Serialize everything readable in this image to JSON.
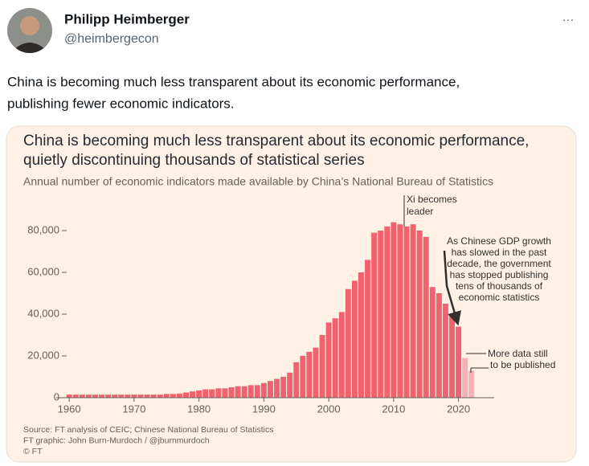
{
  "tweet": {
    "name": "Philipp Heimberger",
    "handle": "@heimbergecon",
    "menu": "···",
    "text": [
      "China is becoming much less transparent about its economic performance,",
      "publishing fewer economic indicators."
    ]
  },
  "chart_data": {
    "type": "bar",
    "title": [
      "China is becoming much less transparent about its economic performance,",
      "quietly discontinuing thousands of statistical series"
    ],
    "subtitle": "Annual number of economic indicators made available by China’s National Bureau of Statistics",
    "x": [
      1960,
      1961,
      1962,
      1963,
      1964,
      1965,
      1966,
      1967,
      1968,
      1969,
      1970,
      1971,
      1972,
      1973,
      1974,
      1975,
      1976,
      1977,
      1978,
      1979,
      1980,
      1981,
      1982,
      1983,
      1984,
      1985,
      1986,
      1987,
      1988,
      1989,
      1990,
      1991,
      1992,
      1993,
      1994,
      1995,
      1996,
      1997,
      1998,
      1999,
      2000,
      2001,
      2002,
      2003,
      2004,
      2005,
      2006,
      2007,
      2008,
      2009,
      2010,
      2011,
      2012,
      2013,
      2014,
      2015,
      2016,
      2017,
      2018,
      2019,
      2020,
      2021,
      2022
    ],
    "values": [
      1500,
      1500,
      1500,
      1500,
      1500,
      1500,
      1500,
      1500,
      1500,
      1500,
      1500,
      1500,
      1500,
      1500,
      1500,
      1800,
      1800,
      2000,
      2500,
      3000,
      3500,
      4000,
      4000,
      4500,
      4500,
      5000,
      5500,
      5500,
      6000,
      6000,
      7000,
      8000,
      9000,
      10000,
      12000,
      17000,
      20000,
      22000,
      24000,
      30000,
      36000,
      38000,
      41000,
      52000,
      56000,
      60000,
      66000,
      79000,
      80000,
      82000,
      84000,
      83000,
      82000,
      83000,
      80000,
      77000,
      53000,
      50000,
      45000,
      40000,
      34000,
      19000,
      13000
    ],
    "colors": [
      "#f0626e",
      "#f0626e",
      "#f0626e",
      "#f0626e",
      "#f0626e",
      "#f0626e",
      "#f0626e",
      "#f0626e",
      "#f0626e",
      "#f0626e",
      "#f0626e",
      "#f0626e",
      "#f0626e",
      "#f0626e",
      "#f0626e",
      "#f0626e",
      "#f0626e",
      "#f0626e",
      "#f0626e",
      "#f0626e",
      "#f0626e",
      "#f0626e",
      "#f0626e",
      "#f0626e",
      "#f0626e",
      "#f0626e",
      "#f0626e",
      "#f0626e",
      "#f0626e",
      "#f0626e",
      "#f0626e",
      "#f0626e",
      "#f0626e",
      "#f0626e",
      "#f0626e",
      "#f0626e",
      "#f0626e",
      "#f0626e",
      "#f0626e",
      "#f0626e",
      "#f0626e",
      "#f0626e",
      "#f0626e",
      "#f0626e",
      "#f0626e",
      "#f0626e",
      "#f0626e",
      "#f0626e",
      "#f0626e",
      "#f0626e",
      "#f0626e",
      "#f0626e",
      "#f0626e",
      "#f0626e",
      "#f0626e",
      "#f0626e",
      "#f0626e",
      "#f0626e",
      "#f0626e",
      "#f0626e",
      "#f0626e",
      "#f7b0b5",
      "#f7b0b5"
    ],
    "xlim": [
      1958,
      2025.5
    ],
    "xticks": [
      1960,
      1970,
      1980,
      1990,
      2000,
      2010,
      2020
    ],
    "ylim": [
      0,
      90000
    ],
    "yticks": [
      0,
      {
        "value": 20000,
        "label": "20,000"
      },
      {
        "value": 40000,
        "label": "40,000"
      },
      {
        "value": 60000,
        "label": "60,000"
      },
      {
        "value": 80000,
        "label": "80,000"
      }
    ],
    "grid": false,
    "annotations": [
      [
        "Xi becomes",
        "leader"
      ],
      [
        "As Chinese GDP growth",
        "has slowed in the past",
        "decade, the government",
        "has stopped publishing",
        "tens of thousands of",
        "economic statistics"
      ],
      [
        "More data still",
        "to be published"
      ]
    ],
    "source": [
      "Source: FT analysis of CEIC; Chinese National Bureau of Statistics",
      "FT graphic: John Burn-Murdoch / @jburnmurdoch",
      "© FT"
    ]
  }
}
